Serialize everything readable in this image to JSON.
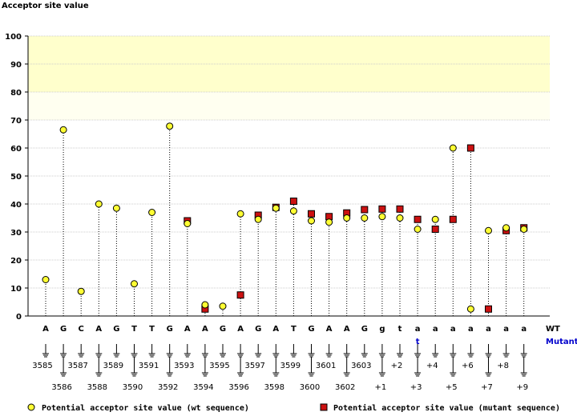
{
  "chart_data": {
    "type": "scatter",
    "title": "Acceptor site value",
    "ylabel": "Acceptor site value",
    "ylim": [
      0,
      100
    ],
    "yticks": [
      0,
      10,
      20,
      30,
      40,
      50,
      60,
      70,
      80,
      90,
      100
    ],
    "highlight_band": [
      70,
      100
    ],
    "highlight_band_strong": [
      80,
      100
    ],
    "sequence_row_labels": {
      "wt": "WT",
      "mutant": "Mutant"
    },
    "colors": {
      "wt": "#ffff33",
      "mutant": "#cc1111",
      "band_strong": "#ffffcc",
      "band_weak": "#fffff0",
      "grid": "#cccccc",
      "mutant_text": "#0000cc"
    },
    "categories": [
      {
        "wt": "A",
        "mut": "",
        "pos": "3585"
      },
      {
        "wt": "G",
        "mut": "",
        "pos": "3586"
      },
      {
        "wt": "C",
        "mut": "",
        "pos": "3587"
      },
      {
        "wt": "A",
        "mut": "",
        "pos": "3588"
      },
      {
        "wt": "G",
        "mut": "",
        "pos": "3589"
      },
      {
        "wt": "T",
        "mut": "",
        "pos": "3590"
      },
      {
        "wt": "T",
        "mut": "",
        "pos": "3591"
      },
      {
        "wt": "G",
        "mut": "",
        "pos": "3592"
      },
      {
        "wt": "A",
        "mut": "",
        "pos": "3593"
      },
      {
        "wt": "A",
        "mut": "",
        "pos": "3594"
      },
      {
        "wt": "G",
        "mut": "",
        "pos": "3595"
      },
      {
        "wt": "A",
        "mut": "",
        "pos": "3596"
      },
      {
        "wt": "G",
        "mut": "",
        "pos": "3597"
      },
      {
        "wt": "A",
        "mut": "",
        "pos": "3598"
      },
      {
        "wt": "T",
        "mut": "",
        "pos": "3599"
      },
      {
        "wt": "G",
        "mut": "",
        "pos": "3600"
      },
      {
        "wt": "A",
        "mut": "",
        "pos": "3601"
      },
      {
        "wt": "A",
        "mut": "",
        "pos": "3602"
      },
      {
        "wt": "G",
        "mut": "",
        "pos": "3603"
      },
      {
        "wt": "g",
        "mut": "",
        "pos": "+1"
      },
      {
        "wt": "t",
        "mut": "",
        "pos": "+2"
      },
      {
        "wt": "a",
        "mut": "t",
        "pos": "+3"
      },
      {
        "wt": "a",
        "mut": "",
        "pos": "+4"
      },
      {
        "wt": "a",
        "mut": "",
        "pos": "+5"
      },
      {
        "wt": "a",
        "mut": "",
        "pos": "+6"
      },
      {
        "wt": "a",
        "mut": "",
        "pos": "+7"
      },
      {
        "wt": "a",
        "mut": "",
        "pos": "+8"
      },
      {
        "wt": "a",
        "mut": "",
        "pos": "+9"
      }
    ],
    "series": [
      {
        "name": "Potential acceptor site value (wt sequence)",
        "marker": "circle",
        "values": [
          13,
          66.5,
          8.8,
          40,
          38.5,
          11.5,
          37,
          67.8,
          33,
          4,
          3.5,
          36.5,
          34.5,
          38.5,
          37.5,
          34,
          33.5,
          35,
          35,
          35.5,
          35,
          31,
          34.5,
          60,
          2.5,
          30.5,
          31.5,
          31
        ]
      },
      {
        "name": "Potential acceptor site value (mutant sequence)",
        "marker": "square",
        "values": [
          null,
          null,
          null,
          null,
          null,
          null,
          null,
          null,
          34,
          2.5,
          null,
          7.5,
          36,
          38.8,
          41,
          36.5,
          35.5,
          36.8,
          38,
          38.2,
          38.2,
          34.5,
          31,
          34.5,
          60,
          2.5,
          30.5,
          31.5
        ]
      }
    ]
  }
}
